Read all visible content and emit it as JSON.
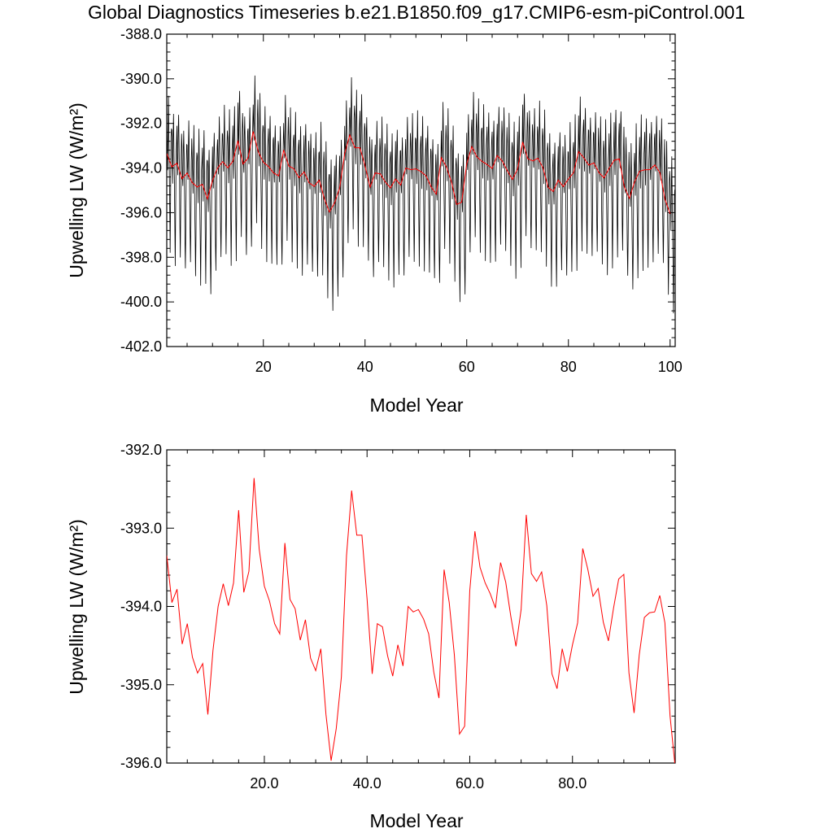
{
  "page": {
    "title": "Global Diagnostics Timeseries b.e21.B1850.f09_g17.CMIP6-esm-piControl.001"
  },
  "chart_data": [
    {
      "type": "line",
      "title": "",
      "xlabel": "Model Year",
      "ylabel": "Upwelling LW (W/m²)",
      "xlim": [
        1,
        101
      ],
      "ylim": [
        -402.0,
        -388.0
      ],
      "xticks": [
        20,
        40,
        60,
        80,
        100
      ],
      "xtick_labels": [
        "20",
        "40",
        "60",
        "80",
        "100"
      ],
      "yticks": [
        -402.0,
        -400.0,
        -398.0,
        -396.0,
        -394.0,
        -392.0,
        -390.0,
        -388.0
      ],
      "ytick_labels": [
        "-402.0",
        "-400.0",
        "-398.0",
        "-396.0",
        "-394.0",
        "-392.0",
        "-390.0",
        "-388.0"
      ],
      "grid": false,
      "series": [
        {
          "kind": "monthly",
          "color": "#000000",
          "annual_amplitude": 3.3
        },
        {
          "kind": "annual",
          "color": "#ff0000"
        }
      ]
    },
    {
      "type": "line",
      "title": "",
      "xlabel": "Model Year",
      "ylabel": "Upwelling LW (W/m²)",
      "xlim": [
        1,
        100
      ],
      "ylim": [
        -396.0,
        -392.0
      ],
      "xticks": [
        20,
        40,
        60,
        80
      ],
      "xtick_labels": [
        "20.0",
        "40.0",
        "60.0",
        "80.0"
      ],
      "yticks": [
        -396.0,
        -395.0,
        -394.0,
        -393.0,
        -392.0
      ],
      "ytick_labels": [
        "-396.0",
        "-395.0",
        "-394.0",
        "-393.0",
        "-392.0"
      ],
      "grid": false,
      "series": [
        {
          "kind": "annual",
          "color": "#ff0000"
        }
      ]
    }
  ],
  "annual_mean": {
    "x": [
      1,
      2,
      3,
      4,
      5,
      6,
      7,
      8,
      9,
      10,
      11,
      12,
      13,
      14,
      15,
      16,
      17,
      18,
      19,
      20,
      21,
      22,
      23,
      24,
      25,
      26,
      27,
      28,
      29,
      30,
      31,
      32,
      33,
      34,
      35,
      36,
      37,
      38,
      39,
      40,
      41,
      42,
      43,
      44,
      45,
      46,
      47,
      48,
      49,
      50,
      51,
      52,
      53,
      54,
      55,
      56,
      57,
      58,
      59,
      60,
      61,
      62,
      63,
      64,
      65,
      66,
      67,
      68,
      69,
      70,
      71,
      72,
      73,
      74,
      75,
      76,
      77,
      78,
      79,
      80,
      81,
      82,
      83,
      84,
      85,
      86,
      87,
      88,
      89,
      90,
      91,
      92,
      93,
      94,
      95,
      96,
      97,
      98,
      99,
      100
    ],
    "y": [
      -393.35,
      -393.95,
      -393.78,
      -394.48,
      -394.22,
      -394.65,
      -394.85,
      -394.73,
      -395.38,
      -394.56,
      -394.0,
      -393.71,
      -393.99,
      -393.7,
      -392.77,
      -393.82,
      -393.55,
      -392.36,
      -393.27,
      -393.74,
      -393.93,
      -394.22,
      -394.35,
      -393.19,
      -393.91,
      -394.03,
      -394.43,
      -394.17,
      -394.66,
      -394.82,
      -394.54,
      -395.38,
      -395.97,
      -395.56,
      -394.9,
      -393.35,
      -392.52,
      -393.09,
      -393.09,
      -393.9,
      -394.86,
      -394.22,
      -394.26,
      -394.63,
      -394.89,
      -394.49,
      -394.76,
      -394.0,
      -394.07,
      -394.04,
      -394.16,
      -394.35,
      -394.84,
      -395.17,
      -393.53,
      -393.95,
      -394.62,
      -395.63,
      -395.53,
      -393.8,
      -393.04,
      -393.5,
      -393.7,
      -393.84,
      -394.02,
      -393.44,
      -393.69,
      -394.13,
      -394.51,
      -394.04,
      -392.83,
      -393.58,
      -393.68,
      -393.56,
      -393.99,
      -394.86,
      -395.05,
      -394.54,
      -394.83,
      -394.49,
      -394.21,
      -393.26,
      -393.53,
      -393.87,
      -393.77,
      -394.2,
      -394.44,
      -394.02,
      -393.65,
      -393.59,
      -394.85,
      -395.36,
      -394.62,
      -394.14,
      -394.08,
      -394.07,
      -393.86,
      -394.21,
      -395.4,
      -396.05
    ]
  }
}
